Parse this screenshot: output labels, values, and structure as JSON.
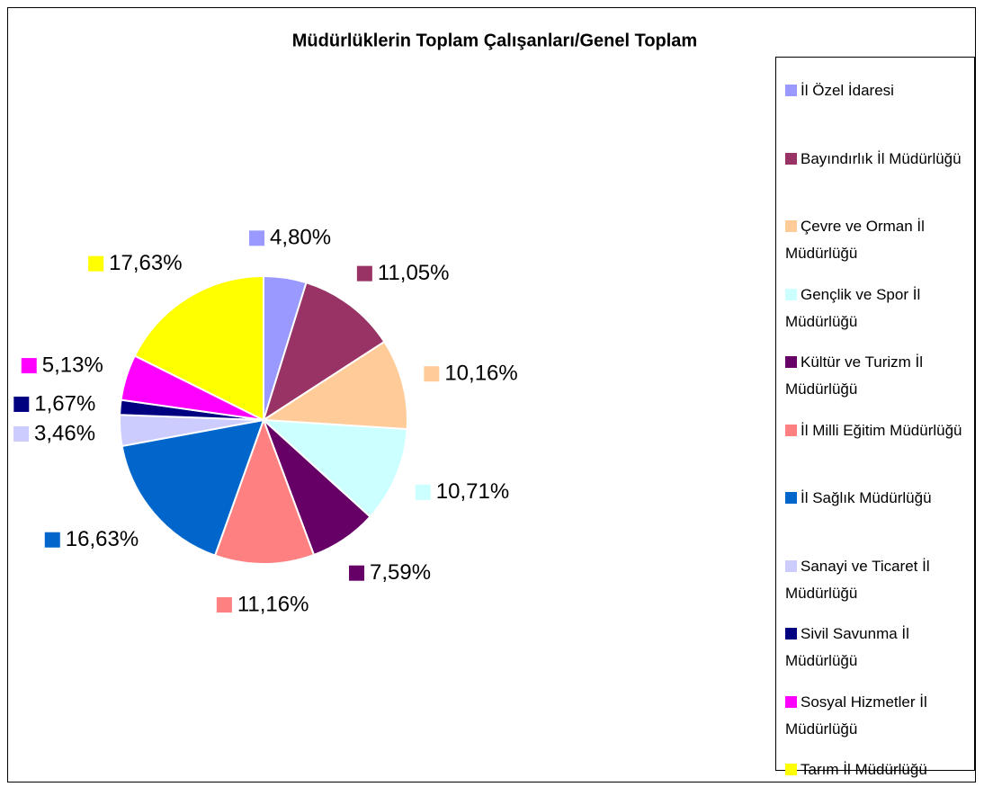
{
  "chart_data": {
    "type": "pie",
    "title": "Müdürlüklerin Toplam Çalışanları/Genel Toplam",
    "categories": [
      "İl Özel İdaresi",
      "Bayındırlık İl Müdürlüğü",
      "Çevre ve Orman İl Müdürlüğü",
      "Gençlik ve Spor İl Müdürlüğü",
      "Kültür ve Turizm İl Müdürlüğü",
      "İl Milli Eğitim Müdürlüğü",
      "İl Sağlık Müdürlüğü",
      "Sanayi ve Ticaret İl Müdürlüğü",
      "Sivil Savunma İl Müdürlüğü",
      "Sosyal Hizmetler İl Müdürlüğü",
      "Tarım İl Müdürlüğü"
    ],
    "values": [
      4.8,
      11.05,
      10.16,
      10.71,
      7.59,
      11.16,
      16.63,
      3.46,
      1.67,
      5.13,
      17.63
    ],
    "value_labels": [
      "4,80%",
      "11,05%",
      "10,16%",
      "10,71%",
      "7,59%",
      "11,16%",
      "16,63%",
      "3,46%",
      "1,67%",
      "5,13%",
      "17,63%"
    ],
    "colors": [
      "#9999ff",
      "#993366",
      "#ffcc99",
      "#ccffff",
      "#660066",
      "#ff8080",
      "#0066cc",
      "#ccccff",
      "#000080",
      "#ff00ff",
      "#ffff00"
    ],
    "legend": "right"
  }
}
